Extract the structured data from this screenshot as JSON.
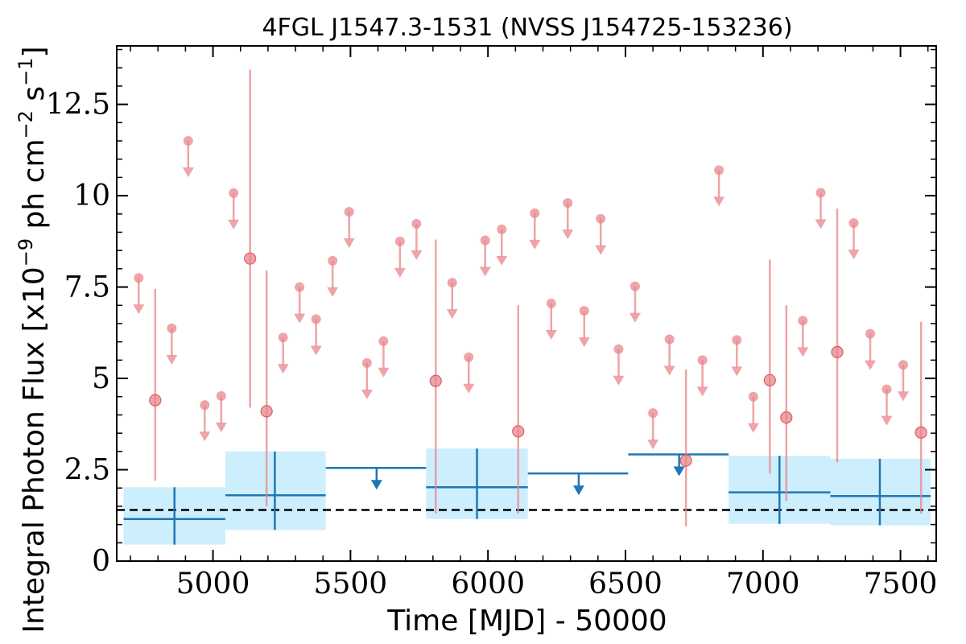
{
  "chart_data": {
    "type": "scatter",
    "title": "4FGL J1547.3-1531 (NVSS J154725-153236)",
    "xlabel": "Time [MJD] - 50000",
    "ylabel": "Integral Photon Flux [x10",
    "ylabel_exp1": "−9",
    "ylabel_mid": " ph cm",
    "ylabel_exp2": "−2",
    "ylabel_mid2": " s",
    "ylabel_exp3": "−1",
    "ylabel_end": "]",
    "xlim": [
      4650,
      7630
    ],
    "ylim": [
      0,
      14.1
    ],
    "xticks": [
      5000,
      5500,
      6000,
      6500,
      7000,
      7500
    ],
    "xtick_labels": [
      "5000",
      "5500",
      "6000",
      "6500",
      "7000",
      "7500"
    ],
    "yticks": [
      0,
      2.5,
      5,
      7.5,
      10,
      12.5
    ],
    "ytick_labels": [
      "0",
      "2.5",
      "5",
      "7.5",
      "10",
      "12.5"
    ],
    "grid": false,
    "colors": {
      "short_bins": "#e8868b",
      "long_bins": "#1f77b4",
      "long_band": "#cdeefd",
      "mean_line": "#000000"
    },
    "mean_flux": 1.4,
    "short_detections": [
      {
        "x": 4790,
        "y": 4.4,
        "err_low": 2.2,
        "err_high": 7.45
      },
      {
        "x": 5135,
        "y": 8.28,
        "err_low": 4.2,
        "err_high": 13.45
      },
      {
        "x": 5195,
        "y": 4.1,
        "err_low": 1.5,
        "err_high": 7.95
      },
      {
        "x": 5810,
        "y": 4.93,
        "err_low": 1.3,
        "err_high": 8.8
      },
      {
        "x": 6110,
        "y": 3.55,
        "err_low": 1.3,
        "err_high": 7.0
      },
      {
        "x": 6720,
        "y": 2.75,
        "err_low": 0.95,
        "err_high": 5.25
      },
      {
        "x": 7025,
        "y": 4.95,
        "err_low": 2.4,
        "err_high": 8.25
      },
      {
        "x": 7085,
        "y": 3.93,
        "err_low": 1.65,
        "err_high": 7.0
      },
      {
        "x": 7270,
        "y": 5.72,
        "err_low": 2.7,
        "err_high": 9.65
      },
      {
        "x": 7575,
        "y": 3.52,
        "err_low": 1.3,
        "err_high": 6.55
      }
    ],
    "short_upper_limits": [
      {
        "x": 4730,
        "y": 7.75
      },
      {
        "x": 4850,
        "y": 6.37
      },
      {
        "x": 4910,
        "y": 11.5
      },
      {
        "x": 4970,
        "y": 4.27
      },
      {
        "x": 5030,
        "y": 4.52
      },
      {
        "x": 5075,
        "y": 10.07
      },
      {
        "x": 5255,
        "y": 6.12
      },
      {
        "x": 5315,
        "y": 7.5
      },
      {
        "x": 5375,
        "y": 6.62
      },
      {
        "x": 5435,
        "y": 8.22
      },
      {
        "x": 5495,
        "y": 9.56
      },
      {
        "x": 5560,
        "y": 5.42
      },
      {
        "x": 5620,
        "y": 6.02
      },
      {
        "x": 5680,
        "y": 8.75
      },
      {
        "x": 5740,
        "y": 9.23
      },
      {
        "x": 5870,
        "y": 7.62
      },
      {
        "x": 5930,
        "y": 5.58
      },
      {
        "x": 5990,
        "y": 8.78
      },
      {
        "x": 6050,
        "y": 9.08
      },
      {
        "x": 6170,
        "y": 9.52
      },
      {
        "x": 6230,
        "y": 7.05
      },
      {
        "x": 6290,
        "y": 9.8
      },
      {
        "x": 6350,
        "y": 6.85
      },
      {
        "x": 6410,
        "y": 9.37
      },
      {
        "x": 6475,
        "y": 5.8
      },
      {
        "x": 6535,
        "y": 7.52
      },
      {
        "x": 6600,
        "y": 4.05
      },
      {
        "x": 6660,
        "y": 6.07
      },
      {
        "x": 6780,
        "y": 5.5
      },
      {
        "x": 6840,
        "y": 10.7
      },
      {
        "x": 6905,
        "y": 6.05
      },
      {
        "x": 6965,
        "y": 4.5
      },
      {
        "x": 7145,
        "y": 6.58
      },
      {
        "x": 7210,
        "y": 10.08
      },
      {
        "x": 7330,
        "y": 9.25
      },
      {
        "x": 7390,
        "y": 6.22
      },
      {
        "x": 7450,
        "y": 4.7
      },
      {
        "x": 7510,
        "y": 5.37
      }
    ],
    "long_detections": [
      {
        "x0": 4675,
        "x1": 5045,
        "xc": 4860,
        "y": 1.15,
        "y_low": 0.45,
        "y_high": 2.02,
        "band_low": 0.45,
        "band_high": 2.02
      },
      {
        "x0": 5045,
        "x1": 5410,
        "xc": 5225,
        "y": 1.8,
        "y_low": 0.85,
        "y_high": 3.0,
        "band_low": 0.85,
        "band_high": 3.0
      },
      {
        "x0": 5775,
        "x1": 6145,
        "xc": 5960,
        "y": 2.02,
        "y_low": 1.15,
        "y_high": 3.08,
        "band_low": 1.15,
        "band_high": 3.08
      },
      {
        "x0": 6875,
        "x1": 7245,
        "xc": 7060,
        "y": 1.88,
        "y_low": 1.02,
        "y_high": 2.88,
        "band_low": 1.02,
        "band_high": 2.88
      },
      {
        "x0": 7245,
        "x1": 7610,
        "xc": 7425,
        "y": 1.78,
        "y_low": 0.98,
        "y_high": 2.8,
        "band_low": 0.98,
        "band_high": 2.8
      }
    ],
    "long_upper_limits": [
      {
        "x0": 5410,
        "x1": 5775,
        "xc": 5595,
        "y": 2.55
      },
      {
        "x0": 6145,
        "x1": 6510,
        "xc": 6330,
        "y": 2.4
      },
      {
        "x0": 6510,
        "x1": 6875,
        "xc": 6695,
        "y": 2.92
      }
    ]
  }
}
